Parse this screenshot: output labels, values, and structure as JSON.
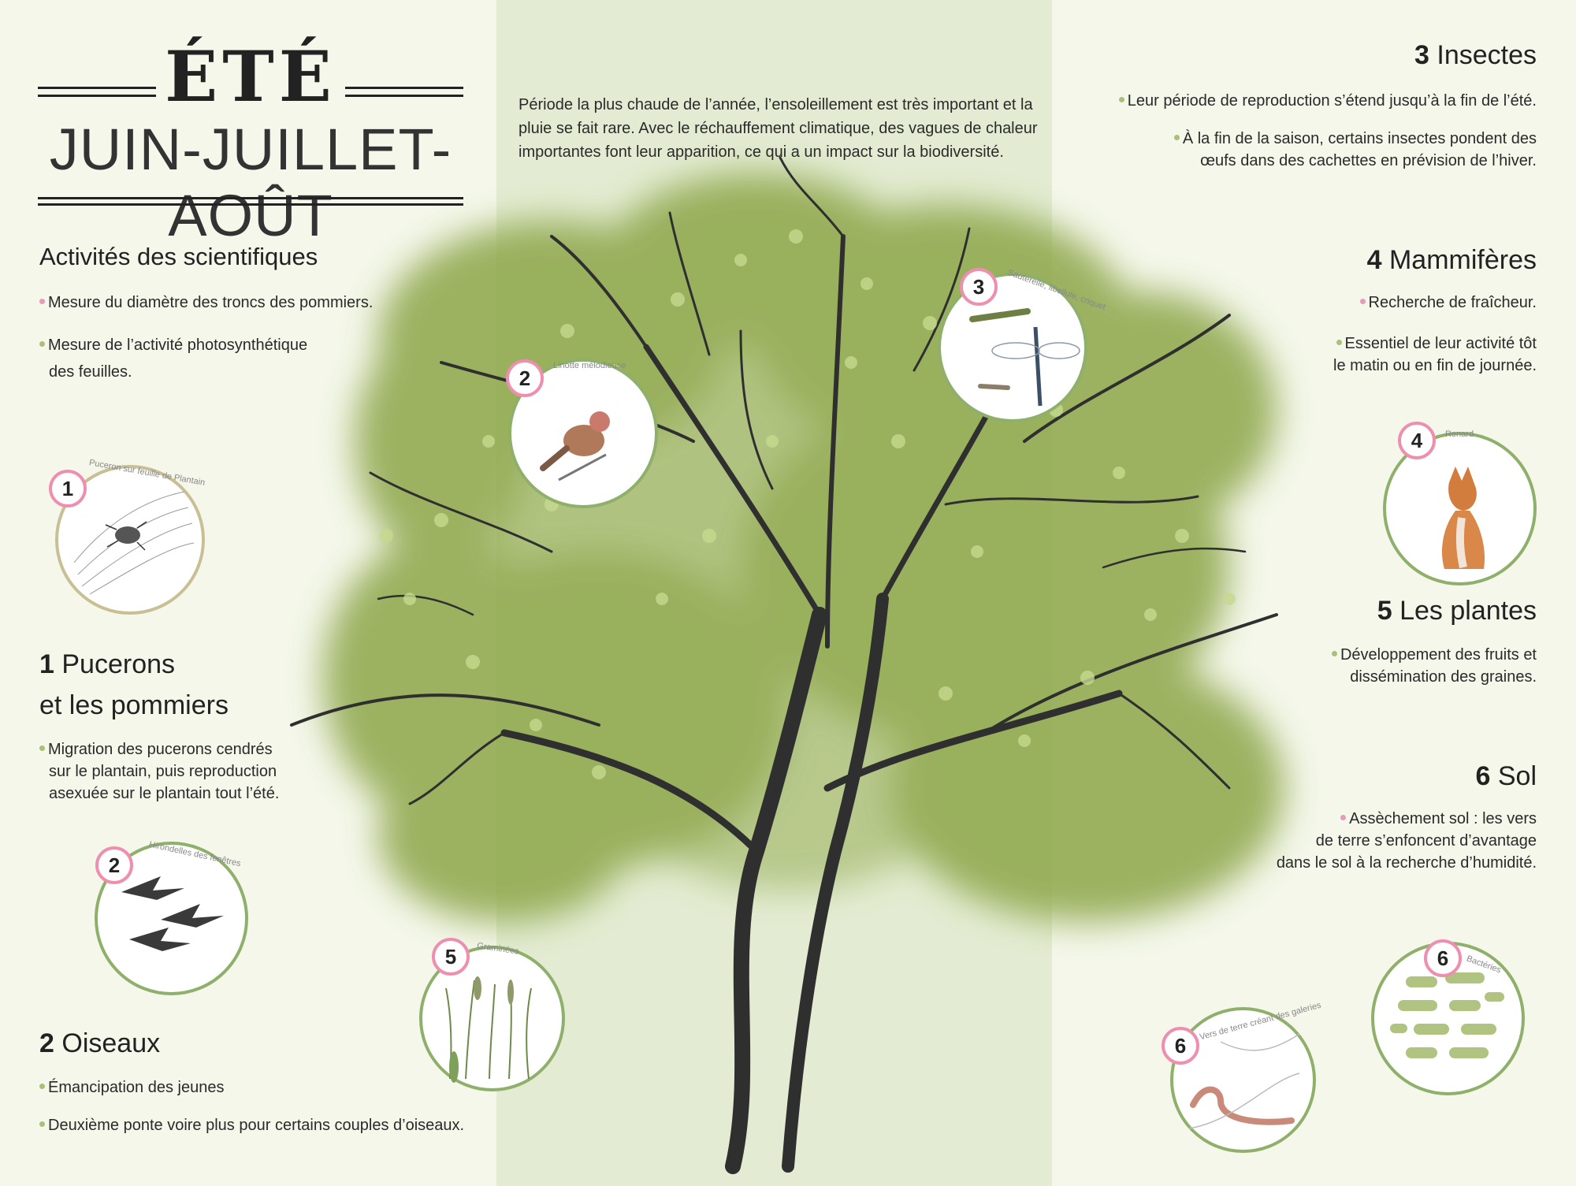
{
  "header": {
    "season": "ÉTÉ",
    "months": "JUIN-JUILLET-AOÛT"
  },
  "intro": "Période la plus chaude de l’année, l’ensoleillement est très important et la pluie se fait rare. Avec le réchauffement climatique, des vagues de chaleur importantes font leur apparition, ce qui a un impact sur la biodiversité.",
  "scientists": {
    "title": "Activités des scientifiques",
    "items": [
      "Mesure du diamètre des troncs des pommiers.",
      "Mesure de l’activité photosynthétique",
      "des feuilles."
    ]
  },
  "sections": {
    "pucerons": {
      "num": "1",
      "title_line1": "Pucerons",
      "title_line2": "et les pommiers",
      "items": [
        "Migration des pucerons cendrés",
        "sur le plantain, puis reproduction",
        "asexuée sur le plantain tout l’été."
      ]
    },
    "oiseaux": {
      "num": "2",
      "title": "Oiseaux",
      "items": [
        "Émancipation des jeunes",
        "Deuxième ponte voire plus pour certains couples d’oiseaux."
      ]
    },
    "insectes": {
      "num": "3",
      "title": "Insectes",
      "items": [
        "Leur période de reproduction s’étend jusqu’à la fin de l’été.",
        "À la fin de la saison, certains insectes pondent des",
        "œufs dans des cachettes en prévision de l’hiver."
      ]
    },
    "mammiferes": {
      "num": "4",
      "title": "Mammifères",
      "items": [
        "Recherche de fraîcheur.",
        "Essentiel de leur activité tôt",
        "le matin ou en fin de journée."
      ]
    },
    "plantes": {
      "num": "5",
      "title": "Les plantes",
      "items": [
        "Développement des fruits et",
        "dissémination des graines."
      ]
    },
    "sol": {
      "num": "6",
      "title": "Sol",
      "items": [
        "Assèchement sol : les vers",
        "de terre s’enfoncent d’avantage",
        "dans le sol à la recherche d’humidité."
      ]
    }
  },
  "illustrations": {
    "c1": {
      "num": "1",
      "caption": "Puceron sur feuille de Plantain"
    },
    "c2a": {
      "num": "2",
      "caption": "Linotte mélodieuse"
    },
    "c3": {
      "num": "3",
      "caption": "Sauterelle, libellule, criquet"
    },
    "c4": {
      "num": "4",
      "caption": "Renard"
    },
    "c2b": {
      "num": "2",
      "caption": "Hirondelles des fenêtres"
    },
    "c5": {
      "num": "5",
      "caption": "Graminées"
    },
    "c6a": {
      "num": "6",
      "caption": "Vers de terre créant des galeries"
    },
    "c6b": {
      "num": "6",
      "caption": "Bactéries"
    }
  },
  "colors": {
    "background": "#f4f7ea",
    "center_band": "#e3ecd2",
    "foliage": "#8da64a",
    "badge_border": "#ef8fb0",
    "circle_border": "#8fb06a",
    "bullet_pink": "#e79aba",
    "bullet_green": "#a8c07a"
  }
}
